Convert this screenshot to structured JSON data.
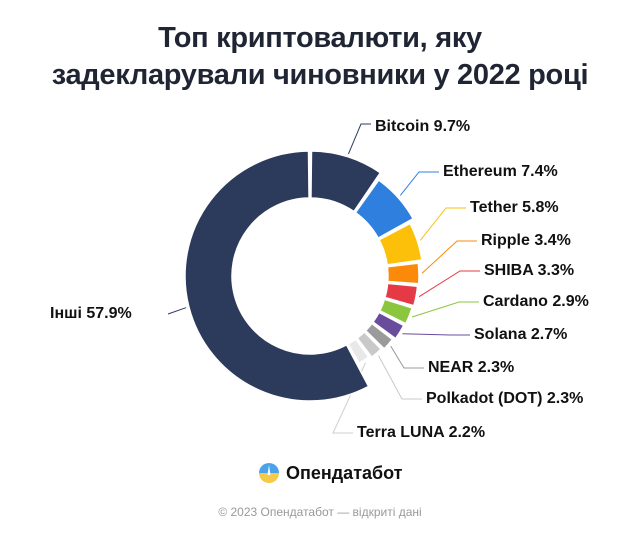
{
  "title_line1": "Топ криптовалюти, яку",
  "title_line2": "задекларували чиновники у 2022 році",
  "brand": "Опендатабот",
  "footer": "© 2023 Опендатабот — відкриті дані",
  "chart_data": {
    "type": "pie",
    "variant": "donut",
    "title": "Топ криптовалюти, яку задекларували чиновники у 2022 році",
    "unit": "%",
    "slices": [
      {
        "name": "Bitcoin",
        "value": 9.7,
        "label": "Bitcoin 9.7%",
        "color": "#2c3b5c"
      },
      {
        "name": "Ethereum",
        "value": 7.4,
        "label": "Ethereum 7.4%",
        "color": "#2f80de"
      },
      {
        "name": "Tether",
        "value": 5.8,
        "label": "Tether 5.8%",
        "color": "#fcc00a"
      },
      {
        "name": "Ripple",
        "value": 3.4,
        "label": "Ripple 3.4%",
        "color": "#fb8a0b"
      },
      {
        "name": "SHIBA",
        "value": 3.3,
        "label": "SHIBA 3.3%",
        "color": "#e63946"
      },
      {
        "name": "Cardano",
        "value": 2.9,
        "label": "Cardano 2.9%",
        "color": "#8cc63f"
      },
      {
        "name": "Solana",
        "value": 2.7,
        "label": "Solana 2.7%",
        "color": "#6a4c9c"
      },
      {
        "name": "NEAR",
        "value": 2.3,
        "label": "NEAR 2.3%",
        "color": "#9b9b9b"
      },
      {
        "name": "Polkadot (DOT)",
        "value": 2.3,
        "label": "Polkadot (DOT) 2.3%",
        "color": "#c9c9c9"
      },
      {
        "name": "Terra LUNA",
        "value": 2.2,
        "label": "Terra LUNA 2.2%",
        "color": "#e8e8e8"
      },
      {
        "name": "Інші",
        "value": 57.9,
        "label": "Інші 57.9%",
        "color": "#2c3b5c"
      }
    ]
  }
}
